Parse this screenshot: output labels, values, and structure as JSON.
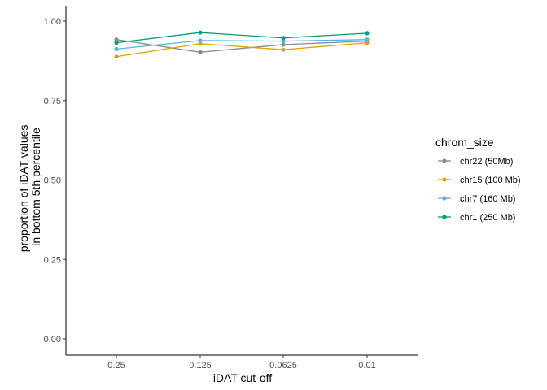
{
  "chart_data": {
    "type": "line",
    "title": "",
    "xlabel": "iDAT cut-off",
    "ylabel_lines": [
      "proportion of iDAT values",
      "in bottom 5th percentile"
    ],
    "categories": [
      "0.25",
      "0.125",
      "0.0625",
      "0.01"
    ],
    "ylim": [
      0,
      1
    ],
    "yticks": [
      0.0,
      0.25,
      0.5,
      0.75,
      1.0
    ],
    "ytick_labels": [
      "0.00",
      "0.25",
      "0.50",
      "0.75",
      "1.00"
    ],
    "grid": false,
    "legend_title": "chrom_size",
    "legend_position": "right",
    "series": [
      {
        "name": "chr22 (50Mb)",
        "color": "#8c8c8c",
        "values": [
          0.942,
          0.902,
          0.926,
          0.937
        ]
      },
      {
        "name": "chr15 (100 Mb)",
        "color": "#e69f00",
        "values": [
          0.888,
          0.929,
          0.91,
          0.932
        ]
      },
      {
        "name": "chr7 (160 Mb)",
        "color": "#56b4e9",
        "values": [
          0.912,
          0.939,
          0.937,
          0.942
        ]
      },
      {
        "name": "chr1 (250 Mb)",
        "color": "#009e73",
        "values": [
          0.932,
          0.964,
          0.947,
          0.962
        ]
      }
    ]
  }
}
